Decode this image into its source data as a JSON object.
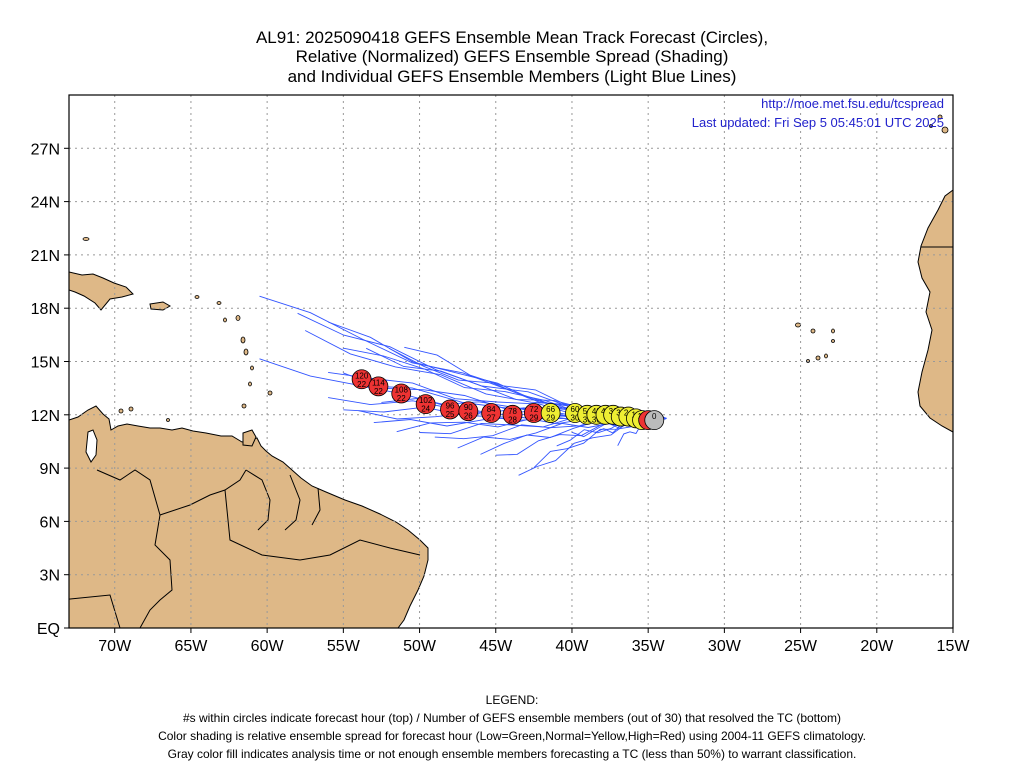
{
  "title": {
    "line1": "AL91: 2025090418 GEFS Ensemble Mean Track Forecast (Circles),",
    "line2": "Relative (Normalized) GEFS Ensemble Spread (Shading)",
    "line3": "and Individual GEFS Ensemble Members (Light Blue Lines)"
  },
  "credit": {
    "url": "http://moe.met.fsu.edu/tcspread",
    "updated": "Last updated: Fri Sep  5 05:45:01 UTC 2025"
  },
  "axes": {
    "lon_labels": [
      "70W",
      "65W",
      "60W",
      "55W",
      "50W",
      "45W",
      "40W",
      "35W",
      "30W",
      "25W",
      "20W",
      "15W"
    ],
    "lat_labels": [
      "EQ",
      "3N",
      "6N",
      "9N",
      "12N",
      "15N",
      "18N",
      "21N",
      "24N",
      "27N"
    ]
  },
  "legend": {
    "heading": "LEGEND:",
    "line1": "#s within circles indicate forecast hour (top) / Number of GEFS ensemble members (out of 30) that resolved the TC (bottom)",
    "line2": "Color shading is relative ensemble spread for forecast hour (Low=Green,Normal=Yellow,High=Red) using 2004-11 GEFS climatology.",
    "line3": "Gray color fill indicates analysis time or not enough ensemble members forecasting a TC (less than 50%) to warrant classification."
  },
  "colors": {
    "land": "#deb887",
    "ocean": "#ffffff",
    "member_line": "#3355ff",
    "high": "#ee3333",
    "normal": "#eeee33",
    "gray": "#bbbbbb",
    "credit": "#2222cc"
  },
  "track": [
    {
      "hour": "0",
      "members": "",
      "lon": -34.6,
      "lat": 11.7,
      "fill": "gray"
    },
    {
      "hour": "6",
      "members": "",
      "lon": -35.0,
      "lat": 11.7,
      "fill": "high"
    },
    {
      "hour": "12",
      "members": "",
      "lon": -35.4,
      "lat": 11.7,
      "fill": "normal"
    },
    {
      "hour": "18",
      "members": "",
      "lon": -35.8,
      "lat": 11.8,
      "fill": "normal"
    },
    {
      "hour": "24",
      "members": "",
      "lon": -36.3,
      "lat": 11.9,
      "fill": "normal"
    },
    {
      "hour": "30",
      "members": "",
      "lon": -36.8,
      "lat": 11.9,
      "fill": "normal"
    },
    {
      "hour": "36",
      "members": "",
      "lon": -37.3,
      "lat": 12.0,
      "fill": "normal"
    },
    {
      "hour": "42",
      "members": "",
      "lon": -37.8,
      "lat": 12.0,
      "fill": "normal"
    },
    {
      "hour": "48",
      "members": "30",
      "lon": -38.4,
      "lat": 12.0,
      "fill": "normal"
    },
    {
      "hour": "54",
      "members": "30",
      "lon": -39.0,
      "lat": 12.0,
      "fill": "normal"
    },
    {
      "hour": "60",
      "members": "30",
      "lon": -39.8,
      "lat": 12.1,
      "fill": "normal"
    },
    {
      "hour": "66",
      "members": "29",
      "lon": -41.4,
      "lat": 12.1,
      "fill": "normal"
    },
    {
      "hour": "72",
      "members": "29",
      "lon": -42.5,
      "lat": 12.1,
      "fill": "high"
    },
    {
      "hour": "78",
      "members": "28",
      "lon": -43.9,
      "lat": 12.0,
      "fill": "high"
    },
    {
      "hour": "84",
      "members": "27",
      "lon": -45.3,
      "lat": 12.1,
      "fill": "high"
    },
    {
      "hour": "90",
      "members": "26",
      "lon": -46.8,
      "lat": 12.2,
      "fill": "high"
    },
    {
      "hour": "96",
      "members": "25",
      "lon": -48.0,
      "lat": 12.3,
      "fill": "high"
    },
    {
      "hour": "102",
      "members": "24",
      "lon": -49.6,
      "lat": 12.6,
      "fill": "high"
    },
    {
      "hour": "108",
      "members": "22",
      "lon": -51.2,
      "lat": 13.2,
      "fill": "high"
    },
    {
      "hour": "114",
      "members": "22",
      "lon": -52.7,
      "lat": 13.6,
      "fill": "high"
    },
    {
      "hour": "120",
      "members": "22",
      "lon": -53.8,
      "lat": 14.0,
      "fill": "high"
    }
  ]
}
